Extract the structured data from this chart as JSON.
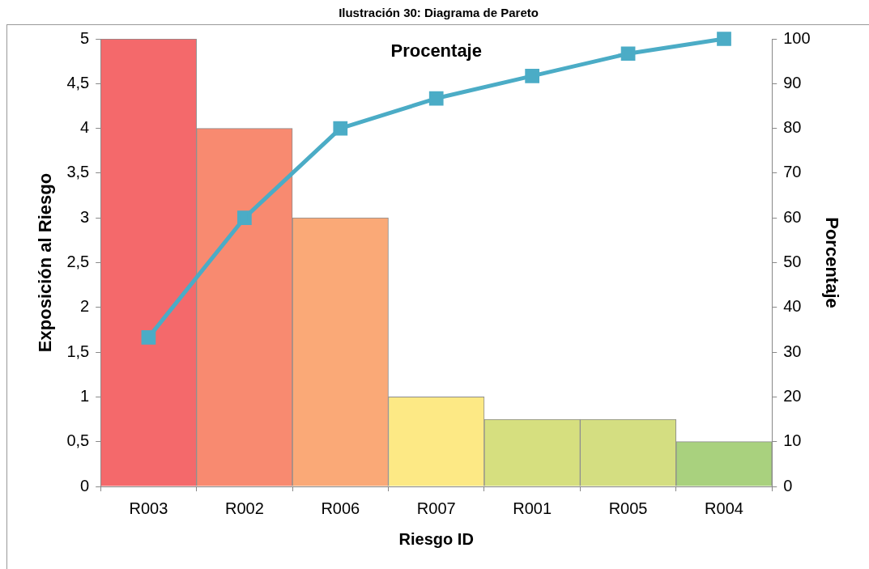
{
  "chart_data": {
    "type": "bar",
    "title": "Ilustración 30: Diagrama de Pareto",
    "xlabel": "Riesgo ID",
    "ylabel": "Exposición al Riesgo",
    "y2label": "Porcentaje",
    "categories": [
      "R003",
      "R002",
      "R006",
      "R007",
      "R001",
      "R005",
      "R004"
    ],
    "series": [
      {
        "colors": [
          "#f4696b",
          "#f88a70",
          "#faa977",
          "#fde985",
          "#d6df7f",
          "#d4de81",
          "#a9d17e"
        ],
        "values": [
          5,
          4,
          3,
          1,
          0.75,
          0.75,
          0.5
        ]
      },
      {
        "type": "line",
        "name": "Procentaje",
        "color": "#4bacc6",
        "axis": "y2",
        "marker": "square",
        "values": [
          33.3,
          60,
          80,
          86.7,
          91.7,
          96.7,
          100
        ]
      }
    ],
    "ylim": [
      0,
      5
    ],
    "yticks": [
      0,
      {
        "value": 0.5,
        "label": "0,5"
      },
      1,
      {
        "value": 1.5,
        "label": "1,5"
      },
      2,
      {
        "value": 2.5,
        "label": "2,5"
      },
      3,
      {
        "value": 3.5,
        "label": "3,5"
      },
      4,
      {
        "value": 4.5,
        "label": "4,5"
      },
      5
    ],
    "y2lim": [
      0,
      100
    ],
    "y2ticks": [
      0,
      10,
      20,
      30,
      40,
      50,
      60,
      70,
      80,
      90,
      100
    ],
    "grid": false,
    "legend": "top"
  }
}
